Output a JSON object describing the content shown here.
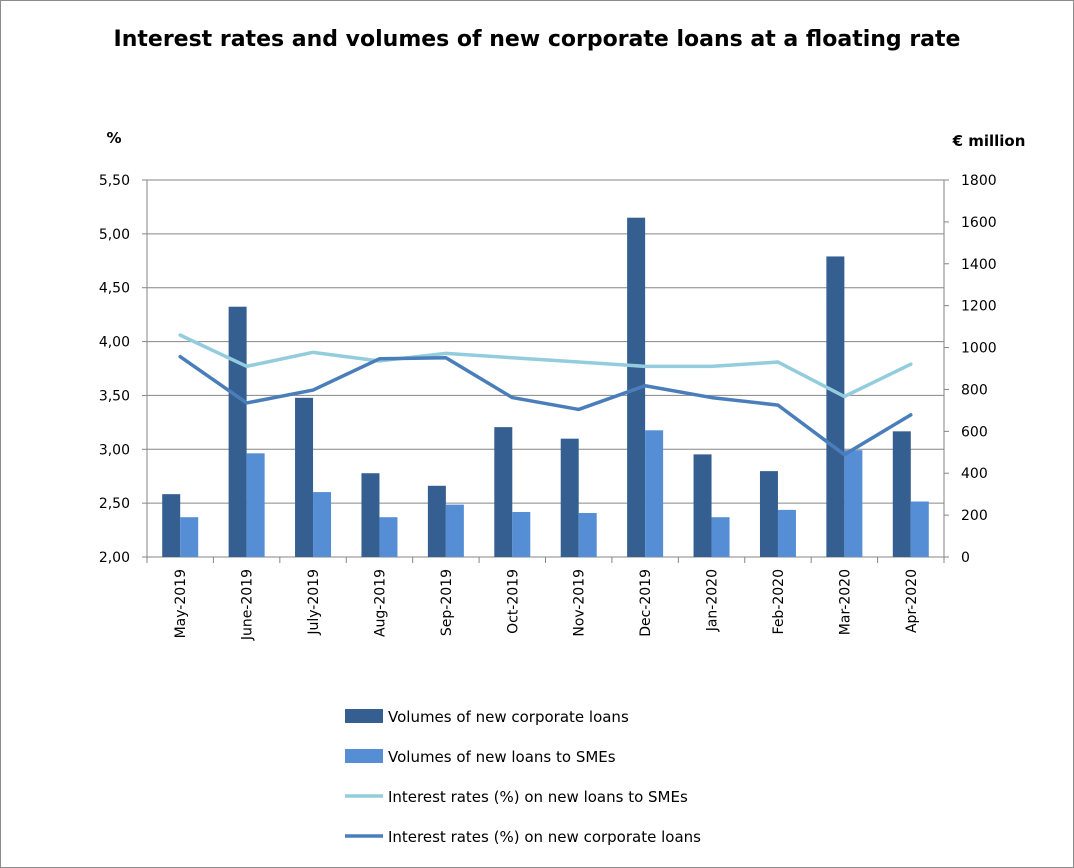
{
  "chart_data": {
    "type": "bar",
    "title": "Interest rates and volumes of new corporate loans at a floating rate",
    "y_left_label": "%",
    "y_right_label": "€ million",
    "y_left_range": [
      2.0,
      5.5
    ],
    "y_right_range": [
      0,
      1800
    ],
    "y_left_ticks": [
      "2,00",
      "2,50",
      "3,00",
      "3,50",
      "4,00",
      "4,50",
      "5,00",
      "5,50"
    ],
    "y_right_ticks": [
      "0",
      "200",
      "400",
      "600",
      "800",
      "1000",
      "1200",
      "1400",
      "1600",
      "1800"
    ],
    "grid": true,
    "legend_position": "bottom",
    "categories": [
      "May-2019",
      "June-2019",
      "July-2019",
      "Aug-2019",
      "Sep-2019",
      "Oct-2019",
      "Nov-2019",
      "Dec-2019",
      "Jan-2020",
      "Feb-2020",
      "Mar-2020",
      "Apr-2020"
    ],
    "series": [
      {
        "name": "Volumes of new corporate loans",
        "kind": "bar",
        "axis": "right",
        "color": "#365f91",
        "values": [
          300,
          1195,
          760,
          400,
          340,
          620,
          565,
          1620,
          490,
          410,
          1435,
          600
        ]
      },
      {
        "name": "Volumes of new loans to SMEs",
        "kind": "bar",
        "axis": "right",
        "color": "#558ed5",
        "values": [
          190,
          495,
          310,
          190,
          250,
          215,
          210,
          605,
          190,
          225,
          510,
          265
        ]
      },
      {
        "name": "Interest rates (%) on new loans to SMEs",
        "kind": "line",
        "axis": "left",
        "color": "#93cddd",
        "values": [
          4.06,
          3.77,
          3.9,
          3.82,
          3.89,
          3.85,
          3.81,
          3.77,
          3.77,
          3.81,
          3.49,
          3.79
        ]
      },
      {
        "name": "Interest rates (%) on new corporate loans",
        "kind": "line",
        "axis": "left",
        "color": "#4a7ebb",
        "values": [
          3.86,
          3.43,
          3.55,
          3.84,
          3.85,
          3.48,
          3.37,
          3.59,
          3.48,
          3.41,
          2.95,
          3.32
        ]
      }
    ]
  }
}
